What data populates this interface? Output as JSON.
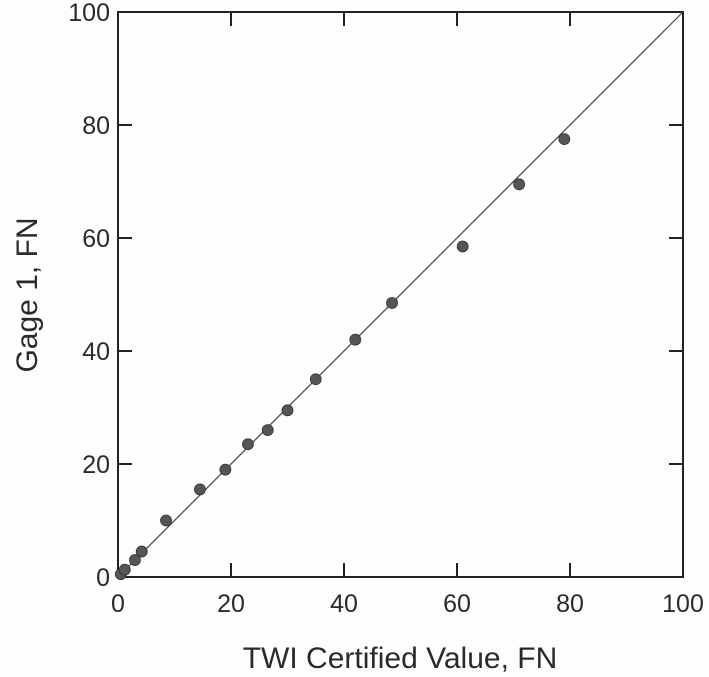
{
  "chart_data": {
    "type": "scatter",
    "xlabel": "TWI Certified Value, FN",
    "ylabel": "Gage 1, FN",
    "xlim": [
      0,
      100
    ],
    "ylim": [
      0,
      100
    ],
    "x_ticks": [
      0,
      20,
      40,
      60,
      80,
      100
    ],
    "y_ticks": [
      0,
      20,
      40,
      60,
      80,
      100
    ],
    "grid": false,
    "reference_line": {
      "from": [
        0,
        0
      ],
      "to": [
        100,
        100
      ]
    },
    "series": [
      {
        "points": [
          [
            0.5,
            0.5
          ],
          [
            1.2,
            1.3
          ],
          [
            3.0,
            3.0
          ],
          [
            4.2,
            4.5
          ],
          [
            8.5,
            10.0
          ],
          [
            14.5,
            15.5
          ],
          [
            19.0,
            19.0
          ],
          [
            23.0,
            23.5
          ],
          [
            26.5,
            26.0
          ],
          [
            30.0,
            29.5
          ],
          [
            35.0,
            35.0
          ],
          [
            42.0,
            42.0
          ],
          [
            48.5,
            48.5
          ],
          [
            61.0,
            58.5
          ],
          [
            71.0,
            69.5
          ],
          [
            79.0,
            77.5
          ]
        ]
      }
    ],
    "colors": {
      "axis": "#222222",
      "point": "#555555",
      "line": "#444444"
    }
  }
}
